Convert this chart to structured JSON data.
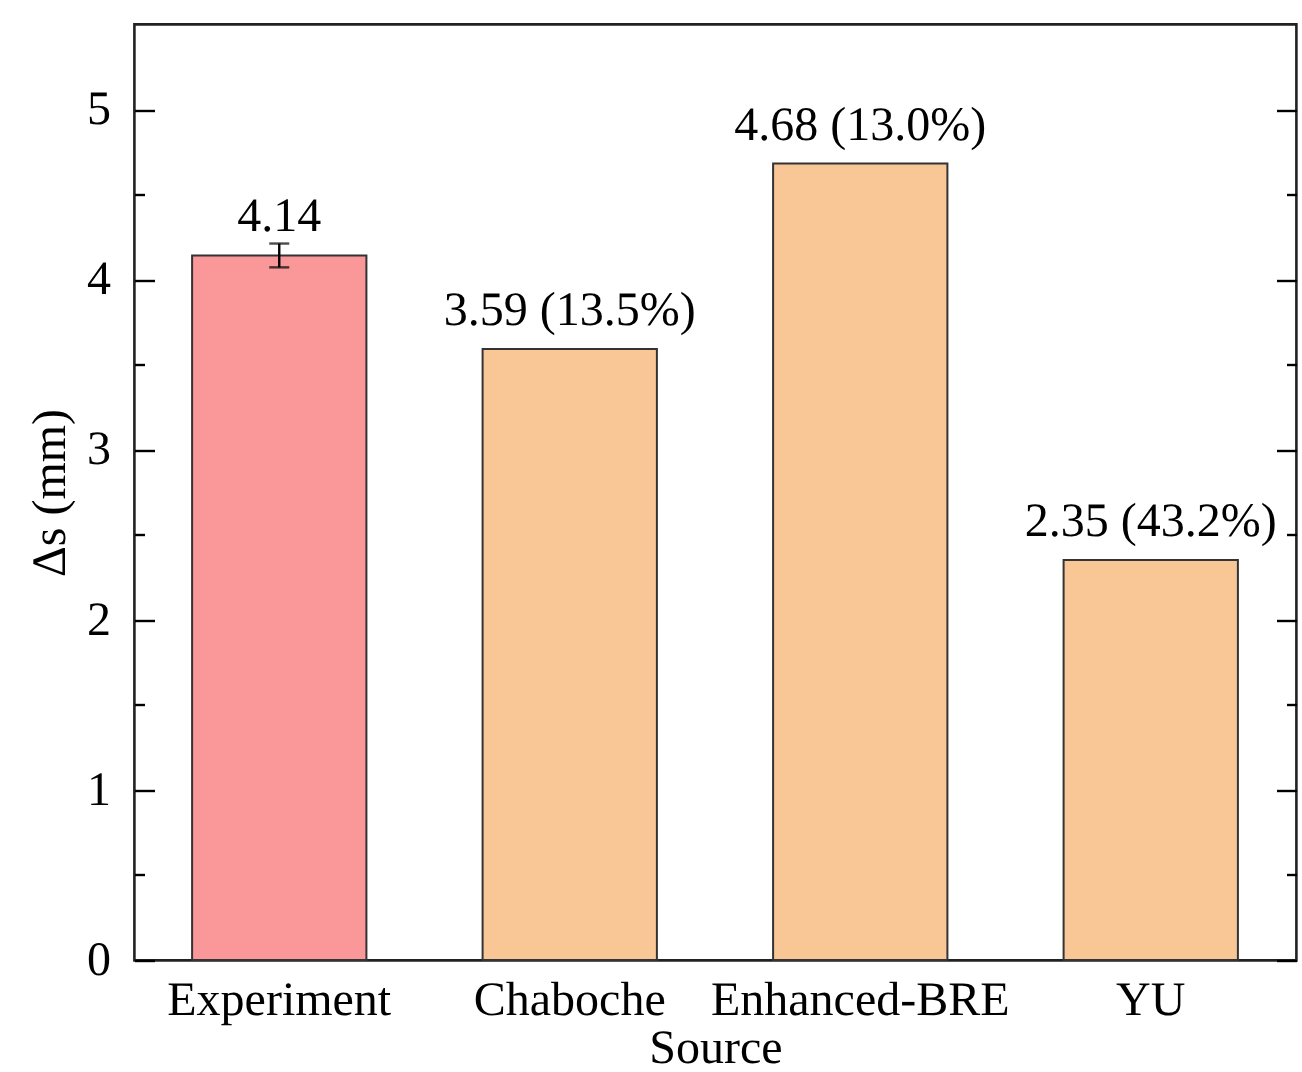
{
  "chart_data": {
    "type": "bar",
    "xlabel": "Source",
    "ylabel": "Δs (mm)",
    "categories": [
      "Experiment",
      "Chaboche",
      "Enhanced-BRE",
      "YU"
    ],
    "values": [
      4.14,
      3.59,
      4.68,
      2.35
    ],
    "colors": [
      "#f99799",
      "#f9c796",
      "#f9c796",
      "#f9c796"
    ],
    "errors": [
      0.07,
      null,
      null,
      null
    ],
    "value_labels": [
      "4.14",
      "3.59 (13.5%)",
      "4.68 (13.0%)",
      "2.35 (43.2%)"
    ],
    "ylim": [
      0,
      5.5
    ],
    "yticks": [
      0,
      {
        "value": 0.5,
        "label": null
      },
      1,
      {
        "value": 1.5,
        "label": null
      },
      2,
      {
        "value": 2.5,
        "label": null
      },
      3,
      {
        "value": 3.5,
        "label": null
      },
      4,
      {
        "value": 4.5,
        "label": null
      },
      5
    ],
    "grid": false
  }
}
